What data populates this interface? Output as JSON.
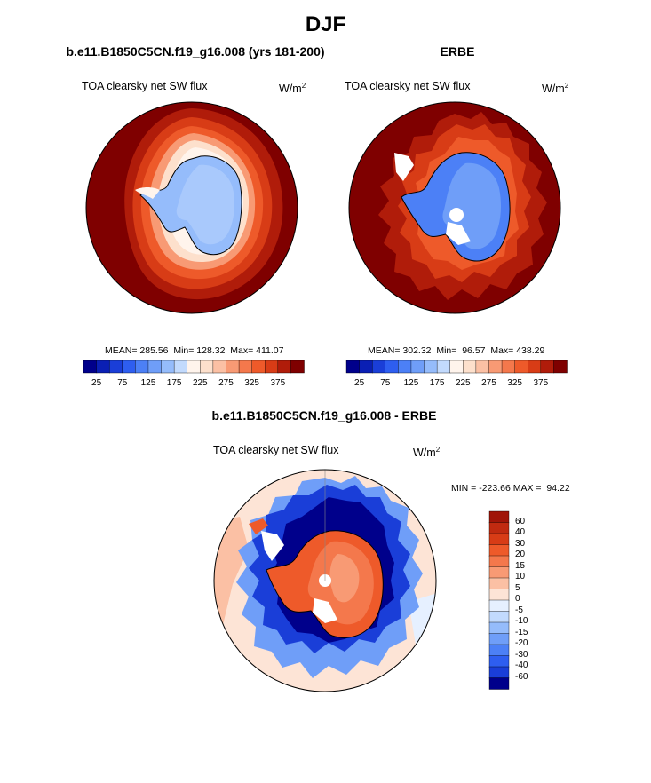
{
  "figure": {
    "title": "DJF",
    "colors": {
      "land_warm": [
        "#7f0000",
        "#a01508",
        "#c02a10",
        "#d83c16",
        "#ee5a2a",
        "#f4784c",
        "#f89a74",
        "#fbc0a4",
        "#fde4d6"
      ],
      "ice_blue": [
        "#00008b",
        "#0a1fb4",
        "#1a3ed8",
        "#2e5ef0",
        "#4c80f6",
        "#6f9ef8",
        "#95bcfb",
        "#c2dafd",
        "#e6f0ff"
      ],
      "white": "#ffffff",
      "coast": "#000000"
    }
  },
  "panels": [
    {
      "id": "model",
      "title": "b.e11.B1850C5CN.f19_g16.008 (yrs 181-200)",
      "variable": "TOA clearsky net SW flux",
      "units_base": "W/m",
      "units_exp": "2",
      "stats_text": "MEAN= 285.56  Min= 128.32  Max= 411.07",
      "mean": 285.56,
      "min": 128.32,
      "max": 411.07,
      "colorbar": {
        "tick_labels": [
          "25",
          "75",
          "125",
          "175",
          "225",
          "275",
          "325",
          "375"
        ],
        "colors": [
          "#00008b",
          "#0a1fb4",
          "#1a3ed8",
          "#2e5ef0",
          "#4c80f6",
          "#6f9ef8",
          "#95bcfb",
          "#c2dafd",
          "#fff4ec",
          "#fde0cc",
          "#fbc0a4",
          "#f89a74",
          "#f4784c",
          "#ee5a2a",
          "#d83c16",
          "#b01c0a",
          "#7f0000"
        ]
      }
    },
    {
      "id": "obs",
      "title": "ERBE",
      "variable": "TOA clearsky net SW flux",
      "units_base": "W/m",
      "units_exp": "2",
      "stats_text": "MEAN= 302.32  Min=  96.57  Max= 438.29",
      "mean": 302.32,
      "min": 96.57,
      "max": 438.29,
      "colorbar": {
        "tick_labels": [
          "25",
          "75",
          "125",
          "175",
          "225",
          "275",
          "325",
          "375"
        ],
        "colors": [
          "#00008b",
          "#0a1fb4",
          "#1a3ed8",
          "#2e5ef0",
          "#4c80f6",
          "#6f9ef8",
          "#95bcfb",
          "#c2dafd",
          "#fff4ec",
          "#fde0cc",
          "#fbc0a4",
          "#f89a74",
          "#f4784c",
          "#ee5a2a",
          "#d83c16",
          "#b01c0a",
          "#7f0000"
        ]
      }
    },
    {
      "id": "diff",
      "title": "b.e11.B1850C5CN.f19_g16.008 - ERBE",
      "variable": "TOA clearsky net SW flux",
      "units_base": "W/m",
      "units_exp": "2",
      "stats_text": "MIN = -223.66 MAX =  94.22",
      "min": -223.66,
      "max": 94.22,
      "colorbar": {
        "tick_labels": [
          "60",
          "40",
          "30",
          "20",
          "15",
          "10",
          "5",
          "0",
          "-5",
          "-10",
          "-15",
          "-20",
          "-30",
          "-40",
          "-60"
        ],
        "colors": [
          "#a01508",
          "#c02a10",
          "#d83c16",
          "#ee5a2a",
          "#f4784c",
          "#f89a74",
          "#fbc0a4",
          "#fde4d6",
          "#e6f0ff",
          "#c2dafd",
          "#95bcfb",
          "#6f9ef8",
          "#4c80f6",
          "#2e5ef0",
          "#1a3ed8",
          "#00008b"
        ]
      }
    }
  ]
}
